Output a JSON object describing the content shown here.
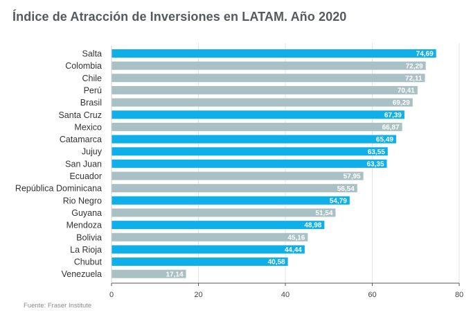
{
  "title": "Índice de Atracción de Inversiones en LATAM. Año 2020",
  "source": "Fuente: Fraser Institute",
  "colors": {
    "highlight": "#0fb0ea",
    "other": "#a9c1c4",
    "grid": "#e3e3e3",
    "axis": "#555555"
  },
  "chart_data": {
    "type": "bar",
    "orientation": "horizontal",
    "title": "Índice de Atracción de Inversiones en LATAM. Año 2020",
    "xlabel": "",
    "ylabel": "",
    "xlim": [
      0,
      80
    ],
    "xticks": [
      0,
      20,
      40,
      60,
      80
    ],
    "grid": true,
    "categories": [
      "Salta",
      "Colombia",
      "Chile",
      "Perú",
      "Brasil",
      "Santa Cruz",
      "Mexico",
      "Catamarca",
      "Jujuy",
      "San Juan",
      "Ecuador",
      "República Dominicana",
      "Rio Negro",
      "Guyana",
      "Mendoza",
      "Bolivia",
      "La Rioja",
      "Chubut",
      "Venezuela"
    ],
    "values": [
      74.69,
      72.29,
      72.11,
      70.41,
      69.29,
      67.39,
      66.87,
      65.49,
      63.55,
      63.35,
      57.95,
      56.54,
      54.79,
      51.54,
      48.98,
      45.16,
      44.44,
      40.58,
      17.14
    ],
    "value_labels": [
      "74,69",
      "72,29",
      "72,11",
      "70,41",
      "69,29",
      "67,39",
      "66,87",
      "65,49",
      "63,55",
      "63,35",
      "57,95",
      "56,54",
      "54,79",
      "51,54",
      "48,98",
      "45,16",
      "44,44",
      "40,58",
      "17,14"
    ],
    "highlight": [
      true,
      false,
      false,
      false,
      false,
      true,
      false,
      true,
      true,
      true,
      false,
      false,
      true,
      false,
      true,
      false,
      true,
      true,
      false
    ]
  }
}
